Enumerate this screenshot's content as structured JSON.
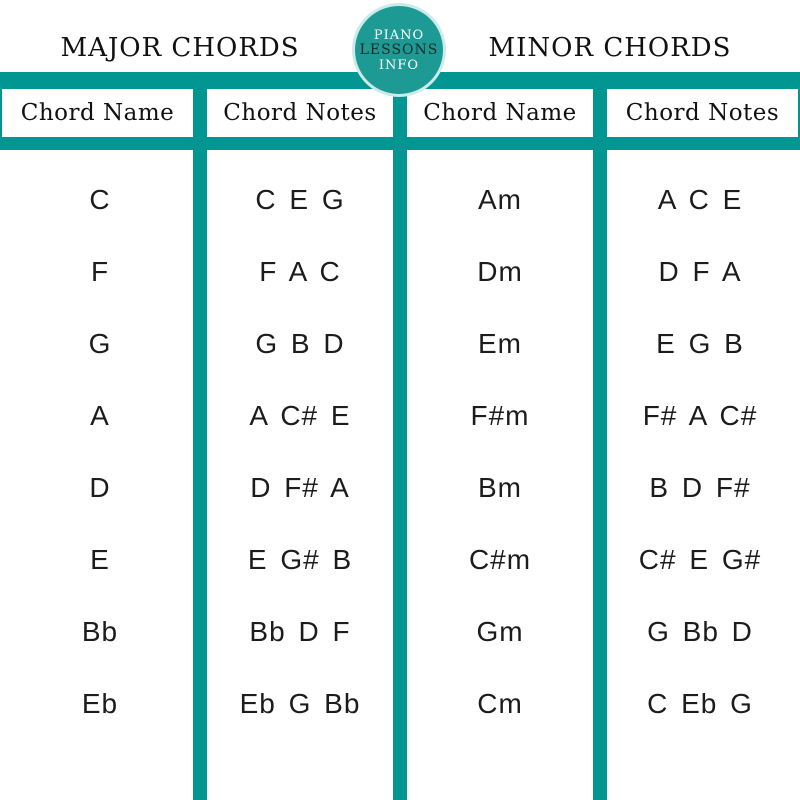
{
  "logo": {
    "line1": "PIANO",
    "line2": "LESSONS",
    "line3": "INFO"
  },
  "headers": {
    "major": "MAJOR CHORDS",
    "minor": "MINOR CHORDS"
  },
  "columns": [
    "Chord Name",
    "Chord Notes",
    "Chord Name",
    "Chord Notes"
  ],
  "rows": [
    {
      "major_name": "C",
      "major_notes": "C E G",
      "minor_name": "Am",
      "minor_notes": "A C E"
    },
    {
      "major_name": "F",
      "major_notes": "F A C",
      "minor_name": "Dm",
      "minor_notes": "D F A"
    },
    {
      "major_name": "G",
      "major_notes": "G B D",
      "minor_name": "Em",
      "minor_notes": "E G B"
    },
    {
      "major_name": "A",
      "major_notes": "A C# E",
      "minor_name": "F#m",
      "minor_notes": "F# A C#"
    },
    {
      "major_name": "D",
      "major_notes": "D F# A",
      "minor_name": "Bm",
      "minor_notes": "B D F#"
    },
    {
      "major_name": "E",
      "major_notes": "E G# B",
      "minor_name": "C#m",
      "minor_notes": "C# E G#"
    },
    {
      "major_name": "Bb",
      "major_notes": "Bb D F",
      "minor_name": "Gm",
      "minor_notes": "G Bb D"
    },
    {
      "major_name": "Eb",
      "major_notes": "Eb G Bb",
      "minor_name": "Cm",
      "minor_notes": "C Eb G"
    }
  ],
  "colors": {
    "teal_accent": "#019691",
    "logo_teal": "#1d9a94",
    "logo_outline": "#ebf8f8",
    "text": "#111111"
  }
}
